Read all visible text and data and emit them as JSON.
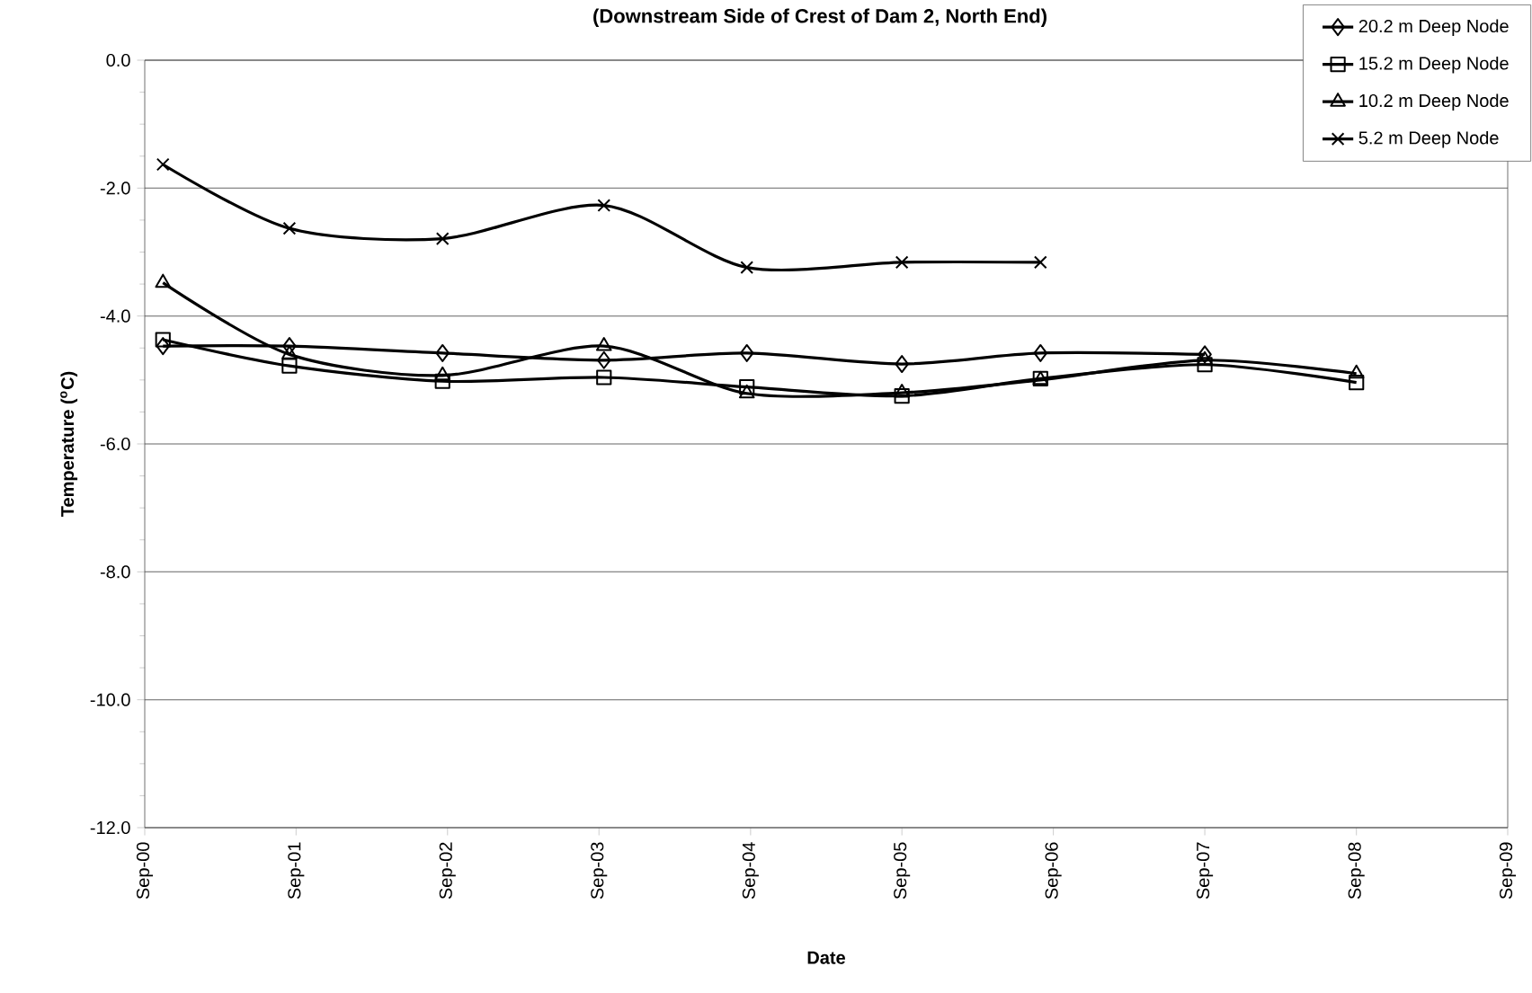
{
  "chart_data": {
    "type": "line",
    "title": "(Downstream Side of Crest of Dam 2, North End)",
    "xlabel": "Date",
    "ylabel": "Temperature ($^{o}$C)",
    "x": [
      "2000-10-15",
      "2001-08-16",
      "2002-08-20",
      "2003-09-13",
      "2004-08-23",
      "2005-09-01",
      "2006-08-01",
      "2007-09-01",
      "2008-09-01"
    ],
    "series": [
      {
        "name": "20.2 m Deep Node",
        "color": "#000000",
        "marker": "diamond",
        "values": [
          -4.47,
          -4.47,
          -4.58,
          -4.69,
          -4.58,
          -4.75,
          -4.58,
          -4.6,
          null
        ]
      },
      {
        "name": "15.2 m Deep Node",
        "color": "#000000",
        "marker": "square",
        "values": [
          -4.37,
          -4.78,
          -5.02,
          -4.96,
          -5.11,
          -5.25,
          -4.98,
          -4.76,
          -5.04
        ]
      },
      {
        "name": "10.2 m Deep Node",
        "color": "#000000",
        "marker": "triangle",
        "values": [
          -3.48,
          -4.6,
          -4.93,
          -4.47,
          -5.21,
          -5.2,
          -5.0,
          -4.69,
          -4.9
        ]
      },
      {
        "name": "5.2 m Deep Node",
        "color": "#000000",
        "marker": "cross",
        "values": [
          -1.63,
          -2.63,
          -2.79,
          -2.27,
          -3.24,
          -3.16,
          -3.16,
          null,
          null
        ]
      }
    ],
    "xlim": [
      "2000-09",
      "2009-09"
    ],
    "xticks": [
      {
        "value": "2000-09",
        "label": "Sep-00"
      },
      {
        "value": "2001-09",
        "label": "Sep-01"
      },
      {
        "value": "2002-09",
        "label": "Sep-02"
      },
      {
        "value": "2003-09",
        "label": "Sep-03"
      },
      {
        "value": "2004-09",
        "label": "Sep-04"
      },
      {
        "value": "2005-09",
        "label": "Sep-05"
      },
      {
        "value": "2006-09",
        "label": "Sep-06"
      },
      {
        "value": "2007-09",
        "label": "Sep-07"
      },
      {
        "value": "2008-09",
        "label": "Sep-08"
      },
      {
        "value": "2009-09",
        "label": "Sep-09"
      }
    ],
    "ylim": [
      -12,
      0
    ],
    "yticks": [
      {
        "value": -12,
        "label": "-12.0"
      },
      {
        "value": -10,
        "label": "-10.0"
      },
      {
        "value": -8,
        "label": "-8.0"
      },
      {
        "value": -6,
        "label": "-6.0"
      },
      {
        "value": -4,
        "label": "-4.0"
      },
      {
        "value": -2,
        "label": "-2.0"
      },
      {
        "value": 0,
        "label": "0.0"
      }
    ],
    "grid": "y",
    "legend": "top right",
    "line_style": "solid"
  }
}
